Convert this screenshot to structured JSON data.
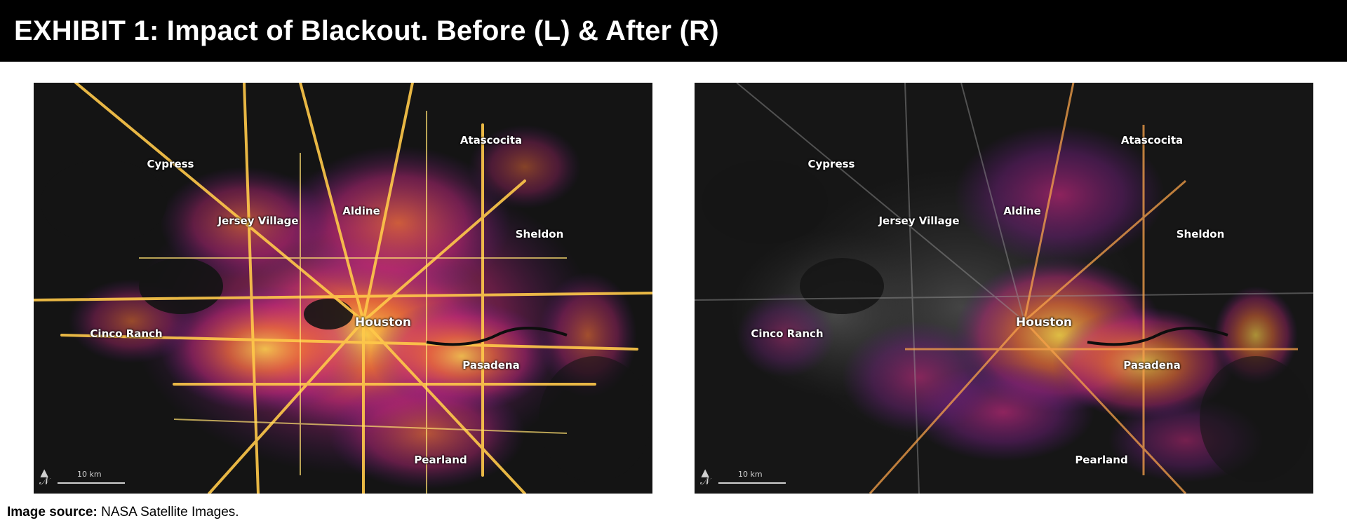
{
  "header": {
    "title": "EXHIBIT 1: Impact of Blackout. Before (L) & After (R)"
  },
  "maps": [
    {
      "cities": [
        "Atascocita",
        "Cypress",
        "Aldine",
        "Jersey Village",
        "Sheldon",
        "Houston",
        "Cinco Ranch",
        "Pasadena",
        "Pearland"
      ],
      "scale_label": "10 km"
    },
    {
      "cities": [
        "Atascocita",
        "Cypress",
        "Aldine",
        "Jersey Village",
        "Sheldon",
        "Houston",
        "Cinco Ranch",
        "Pasadena",
        "Pearland"
      ],
      "scale_label": "10 km"
    }
  ],
  "source": {
    "label": "Image source:",
    "text": "NASA Satellite Images."
  },
  "colors": {
    "bright": "#ffd84a",
    "mid": "#f2703a",
    "dim": "#c0287a",
    "faint": "#5e1b86",
    "background": "#141414"
  }
}
